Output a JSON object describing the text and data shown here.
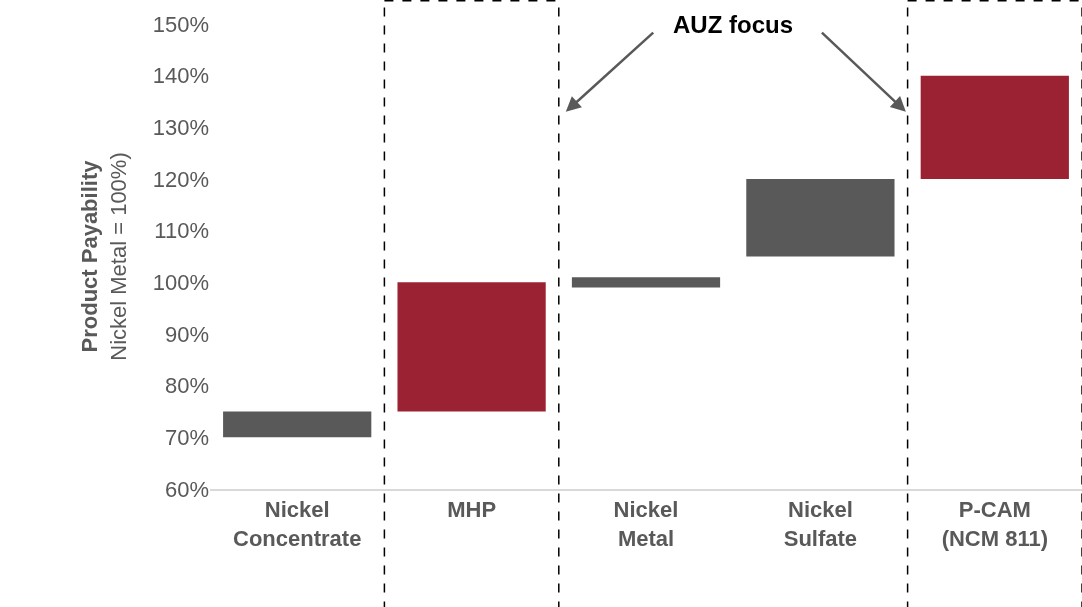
{
  "chart_data": {
    "type": "bar",
    "categories": [
      "Nickel\nConcentrate",
      "MHP",
      "Nickel\nMetal",
      "Nickel\nSulfate",
      "P-CAM\n(NCM 811)"
    ],
    "base": [
      70,
      75,
      99,
      105,
      120
    ],
    "values": [
      5,
      25,
      2,
      15,
      20
    ],
    "colors": [
      "#595959",
      "#9b2232",
      "#595959",
      "#595959",
      "#9b2232"
    ],
    "ylabel": "Product Payability\nNickel Metal = 100%)",
    "ylim": [
      60,
      150
    ],
    "yticks": [
      {
        "value": 60,
        "label": "60%"
      },
      {
        "value": 70,
        "label": "70%"
      },
      {
        "value": 80,
        "label": "80%"
      },
      {
        "value": 90,
        "label": "90%"
      },
      {
        "value": 100,
        "label": "100%"
      },
      {
        "value": 110,
        "label": "110%"
      },
      {
        "value": 120,
        "label": "120%"
      },
      {
        "value": 130,
        "label": "130%"
      },
      {
        "value": 140,
        "label": "140%"
      },
      {
        "value": 150,
        "label": "150%"
      }
    ],
    "annotations": [
      "AUZ focus"
    ],
    "grid": false
  }
}
